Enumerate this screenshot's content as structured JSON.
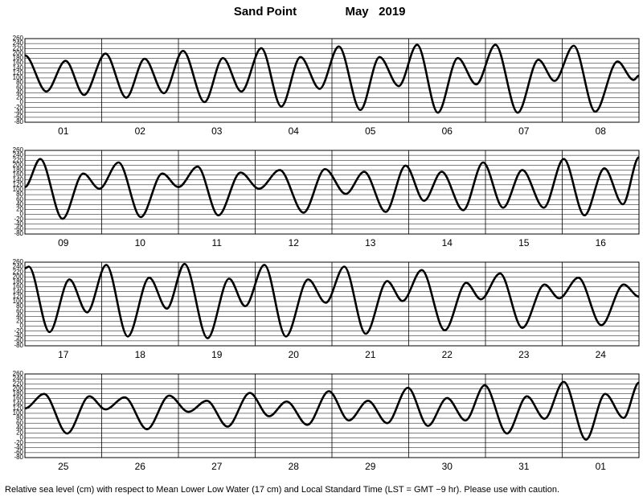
{
  "title": "Sand Point",
  "subtitle": "May   2019",
  "note": "Relative sea level (cm) with respect to Mean Lower Low Water (17 cm) and Local Standard Time (LST = GMT −9 hr). Please use with caution.",
  "chart_data": [
    {
      "type": "line",
      "categories": [
        "01",
        "02",
        "03",
        "04",
        "05",
        "06",
        "07",
        "08"
      ],
      "xlim": [
        0,
        8
      ],
      "ylim": [
        -80,
        260
      ],
      "yticks": [
        260,
        240,
        220,
        200,
        180,
        160,
        140,
        120,
        100,
        80,
        60,
        40,
        20,
        0,
        -20,
        -40,
        -60,
        -80
      ],
      "grid": true,
      "x": [
        0,
        0.28,
        0.53,
        0.77,
        1.05,
        1.32,
        1.56,
        1.81,
        2.06,
        2.34,
        2.58,
        2.82,
        3.08,
        3.34,
        3.59,
        3.84,
        4.09,
        4.37,
        4.62,
        4.87,
        5.11,
        5.38,
        5.64,
        5.88,
        6.13,
        6.42,
        6.69,
        6.9,
        7.15,
        7.43,
        7.72,
        7.93,
        8
      ],
      "series": [
        {
          "color": "#000000",
          "values": [
            192,
            45,
            170,
            31,
            199,
            20,
            178,
            38,
            210,
            2,
            181,
            45,
            221,
            -16,
            185,
            56,
            228,
            -30,
            185,
            67,
            235,
            -41,
            181,
            74,
            235,
            -41,
            174,
            88,
            231,
            -37,
            167,
            92,
            110
          ]
        }
      ]
    },
    {
      "type": "line",
      "categories": [
        "09",
        "10",
        "11",
        "12",
        "13",
        "14",
        "15",
        "16"
      ],
      "xlim": [
        0,
        8
      ],
      "ylim": [
        -80,
        260
      ],
      "yticks": [
        260,
        240,
        220,
        200,
        180,
        160,
        140,
        120,
        100,
        80,
        60,
        40,
        20,
        0,
        -20,
        -40,
        -60,
        -80
      ],
      "grid": true,
      "x": [
        0,
        0.2,
        0.49,
        0.76,
        0.97,
        1.22,
        1.51,
        1.79,
        2,
        2.25,
        2.52,
        2.81,
        3.05,
        3.32,
        3.63,
        3.91,
        4.18,
        4.42,
        4.7,
        4.96,
        5.2,
        5.43,
        5.71,
        5.97,
        6.23,
        6.48,
        6.76,
        7.02,
        7.29,
        7.55,
        7.79,
        8
      ],
      "series": [
        {
          "color": "#000000",
          "values": [
            111,
            225,
            -18,
            166,
            104,
            211,
            -11,
            166,
            111,
            194,
            -4,
            170,
            104,
            180,
            7,
            184,
            83,
            173,
            10,
            198,
            55,
            173,
            17,
            211,
            27,
            180,
            27,
            225,
            -4,
            187,
            41,
            232
          ]
        }
      ]
    },
    {
      "type": "line",
      "categories": [
        "17",
        "18",
        "19",
        "20",
        "21",
        "22",
        "23",
        "24"
      ],
      "xlim": [
        0,
        8
      ],
      "ylim": [
        -80,
        260
      ],
      "yticks": [
        260,
        240,
        220,
        200,
        180,
        160,
        140,
        120,
        100,
        80,
        60,
        40,
        20,
        0,
        -20,
        -40,
        -60,
        -80
      ],
      "grid": true,
      "x": [
        0,
        0.05,
        0.32,
        0.58,
        0.81,
        1.06,
        1.34,
        1.62,
        1.85,
        2.08,
        2.38,
        2.66,
        2.87,
        3.12,
        3.4,
        3.69,
        3.92,
        4.16,
        4.44,
        4.72,
        4.92,
        5.17,
        5.47,
        5.75,
        5.94,
        6.19,
        6.48,
        6.77,
        6.96,
        7.21,
        7.51,
        7.8,
        8
      ],
      "series": [
        {
          "color": "#000000",
          "values": [
            235,
            242,
            -24,
            190,
            56,
            249,
            -42,
            197,
            71,
            253,
            -49,
            193,
            81,
            249,
            -42,
            190,
            95,
            242,
            -31,
            183,
            102,
            228,
            -17,
            176,
            109,
            214,
            -7,
            169,
            113,
            197,
            4,
            169,
            120
          ]
        }
      ]
    },
    {
      "type": "line",
      "categories": [
        "25",
        "26",
        "27",
        "28",
        "29",
        "30",
        "31",
        "01"
      ],
      "xlim": [
        0,
        8
      ],
      "ylim": [
        -80,
        260
      ],
      "yticks": [
        260,
        240,
        220,
        200,
        180,
        160,
        140,
        120,
        100,
        80,
        60,
        40,
        20,
        0,
        -20,
        -40,
        -60,
        -80
      ],
      "grid": true,
      "x": [
        0,
        0.25,
        0.55,
        0.84,
        1.05,
        1.3,
        1.59,
        1.88,
        2.13,
        2.37,
        2.64,
        2.93,
        3.18,
        3.41,
        3.68,
        3.96,
        4.22,
        4.47,
        4.72,
        4.99,
        5.25,
        5.5,
        5.74,
        5.99,
        6.28,
        6.54,
        6.77,
        7.02,
        7.31,
        7.56,
        7.8,
        8
      ],
      "series": [
        {
          "color": "#000000",
          "values": [
            120,
            179,
            18,
            169,
            116,
            165,
            35,
            172,
            106,
            151,
            46,
            183,
            88,
            148,
            53,
            190,
            71,
            151,
            60,
            204,
            49,
            162,
            71,
            214,
            18,
            169,
            78,
            228,
            -7,
            179,
            81,
            225
          ]
        }
      ]
    }
  ]
}
